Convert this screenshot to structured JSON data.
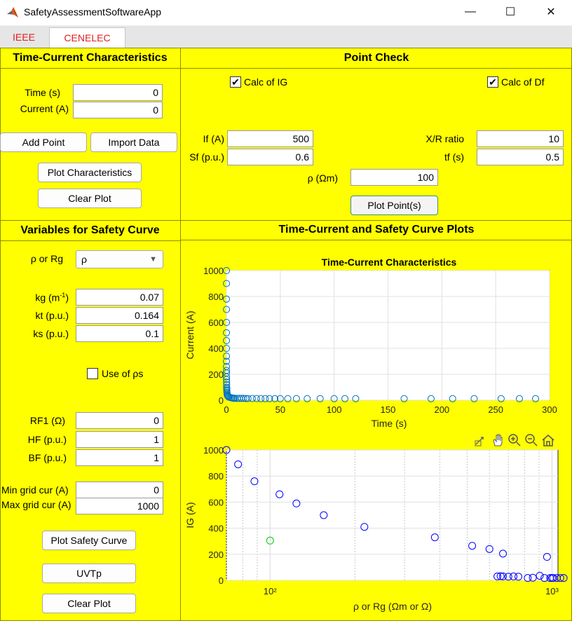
{
  "window": {
    "title": "SafetyAssessmentSoftwareApp",
    "minimize": "—",
    "maximize": "☐",
    "close": "✕"
  },
  "tabs": [
    {
      "label": "IEEE",
      "active": false
    },
    {
      "label": "CENELEC",
      "active": true
    }
  ],
  "colors": {
    "panel": "#ffff00",
    "tab_text": "#e02020",
    "marker_tc": "#0072bd",
    "marker_safety": "#0000ff",
    "marker_point": "#00cc00"
  },
  "tcc": {
    "title": "Time-Current Characteristics",
    "time_label": "Time (s)",
    "time_value": "0",
    "current_label": "Current (A)",
    "current_value": "0",
    "add_point": "Add Point",
    "import_data": "Import Data",
    "plot_characteristics": "Plot Characteristics",
    "clear_plot": "Clear Plot"
  },
  "point_check": {
    "title": "Point Check",
    "calc_ig": "Calc of IG",
    "calc_ig_checked": true,
    "calc_df": "Calc of Df",
    "calc_df_checked": true,
    "if_label": "If (A)",
    "if_value": "500",
    "sf_label": "Sf (p.u.)",
    "sf_value": "0.6",
    "xr_label": "X/R ratio",
    "xr_value": "10",
    "tf_label": "tf (s)",
    "tf_value": "0.5",
    "rho_label": "ρ (Ωm)",
    "rho_value": "100",
    "plot_points": "Plot Point(s)"
  },
  "safety_vars": {
    "title": "Variables for Safety Curve",
    "rho_rg_label": "ρ or Rg",
    "rho_rg_selected": "ρ",
    "kg_label_base": "kg (m",
    "kg_label_sup": "-1",
    "kg_label_end": ")",
    "kg_value": "0.07",
    "kt_label": "kt (p.u.)",
    "kt_value": "0.164",
    "ks_label": "ks (p.u.)",
    "ks_value": "0.1",
    "use_rhos": "Use of ρs",
    "use_rhos_checked": false,
    "rf1_label": "RF1 (Ω)",
    "rf1_value": "0",
    "hf_label": "HF (p.u.)",
    "hf_value": "1",
    "bf_label": "BF (p.u.)",
    "bf_value": "1",
    "min_grid_label": "Min grid cur (A)",
    "min_grid_value": "0",
    "max_grid_label": "Max grid cur (A)",
    "max_grid_value": "1000",
    "plot_safety_curve": "Plot Safety Curve",
    "uvtp": "UVTp",
    "clear_plot": "Clear Plot"
  },
  "plots_section": {
    "title": "Time-Current and Safety Curve Plots"
  },
  "toolbar_icons": [
    "export-icon",
    "pan-icon",
    "zoom-in-icon",
    "zoom-out-icon",
    "home-icon"
  ],
  "chart_data": [
    {
      "type": "scatter",
      "title": "Time-Current Characteristics",
      "xlabel": "Time (s)",
      "ylabel": "Current (A)",
      "xlim": [
        0,
        300
      ],
      "ylim": [
        0,
        1000
      ],
      "xticks": [
        0,
        50,
        100,
        150,
        200,
        250,
        300
      ],
      "yticks": [
        0,
        200,
        400,
        600,
        800,
        1000
      ],
      "grid": true,
      "x": [
        0.05,
        0.05,
        0.05,
        0.05,
        0.05,
        0.05,
        0.05,
        0.05,
        0.05,
        0.05,
        0.05,
        0.1,
        0.1,
        0.1,
        0.1,
        0.2,
        0.2,
        0.2,
        0.3,
        0.3,
        0.4,
        0.5,
        0.6,
        0.8,
        1,
        1.5,
        2,
        3,
        4,
        5,
        6,
        7,
        8,
        10,
        12,
        14,
        16,
        18,
        20,
        24,
        28,
        32,
        36,
        40,
        45,
        50,
        57,
        65,
        75,
        87,
        100,
        110,
        120,
        165,
        190,
        210,
        230,
        255,
        272,
        287
      ],
      "y": [
        1000,
        900,
        780,
        700,
        600,
        520,
        460,
        400,
        340,
        300,
        260,
        230,
        210,
        180,
        160,
        140,
        120,
        100,
        90,
        80,
        70,
        60,
        50,
        40,
        35,
        30,
        25,
        22,
        20,
        18,
        16,
        15,
        15,
        14,
        14,
        14,
        14,
        13,
        13,
        13,
        13,
        12,
        12,
        12,
        12,
        12,
        12,
        12,
        12,
        12,
        12,
        12,
        12,
        12,
        12,
        12,
        12,
        12,
        12,
        12
      ]
    },
    {
      "type": "scatter",
      "title": "",
      "xlabel": "ρ or Rg (Ωm or Ω)",
      "ylabel": "IG (A)",
      "xscale": "log",
      "xlim": [
        70,
        1050
      ],
      "ylim": [
        0,
        1000
      ],
      "xticks": [
        100,
        1000
      ],
      "xtick_labels": [
        "10²",
        "10³"
      ],
      "yticks": [
        0,
        200,
        400,
        600,
        800,
        1000
      ],
      "grid": true,
      "series": [
        {
          "x": [
            70,
            77,
            88,
            108,
            124,
            155,
            216,
            384,
            521,
            600,
            670,
            960,
            640,
            657,
            670,
            700,
            730,
            760,
            820,
            855,
            905,
            940,
            985,
            1000,
            1010,
            1040,
            1070,
            1100
          ],
          "y": [
            1000,
            890,
            760,
            660,
            590,
            500,
            410,
            330,
            265,
            240,
            205,
            180,
            30,
            32,
            30,
            28,
            30,
            28,
            18,
            20,
            35,
            18,
            18,
            18,
            18,
            18,
            18,
            18
          ]
        },
        {
          "x": [
            100
          ],
          "y": [
            305
          ]
        }
      ]
    }
  ]
}
